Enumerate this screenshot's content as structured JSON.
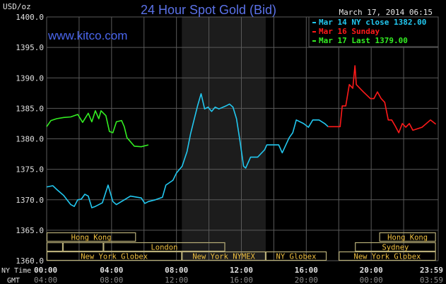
{
  "chart_data": {
    "type": "line",
    "title": "24 Hour Spot Gold (Bid)",
    "watermark": "www.kitco.com",
    "timestamp": "March 17, 2014 06:15",
    "ylabel": "USD/oz",
    "ylim": [
      1360,
      1400
    ],
    "yticks": [
      "1360.0",
      "1365.0",
      "1370.0",
      "1375.0",
      "1380.0",
      "1385.0",
      "1390.0",
      "1395.0",
      "1400.0"
    ],
    "x_row_labels": {
      "ny": "NY Time",
      "gmt": "GMT"
    },
    "xticks_ny": [
      "00:00",
      "04:00",
      "08:00",
      "12:00",
      "16:00",
      "20:00",
      "23:59"
    ],
    "xticks_gmt": [
      "04:00",
      "08:00",
      "12:00",
      "16:00",
      "20:00",
      "00:00",
      "03:59"
    ],
    "grid": true,
    "shaded_period": [
      "08:20",
      "13:30"
    ],
    "legend_position": "top-right",
    "series": [
      {
        "name": "Mar 14 NY close 1382.00",
        "color": "#22c8f0",
        "points": [
          [
            "00:00",
            1372.1
          ],
          [
            "00:23",
            1372.3
          ],
          [
            "00:37",
            1371.7
          ],
          [
            "01:03",
            1370.7
          ],
          [
            "01:29",
            1369.2
          ],
          [
            "01:42",
            1368.9
          ],
          [
            "01:55",
            1370.0
          ],
          [
            "02:08",
            1370.1
          ],
          [
            "02:21",
            1370.9
          ],
          [
            "02:34",
            1370.6
          ],
          [
            "02:47",
            1368.7
          ],
          [
            "03:00",
            1368.9
          ],
          [
            "03:26",
            1369.5
          ],
          [
            "03:47",
            1372.4
          ],
          [
            "04:05",
            1369.7
          ],
          [
            "04:18",
            1369.2
          ],
          [
            "04:44",
            1369.9
          ],
          [
            "05:10",
            1370.6
          ],
          [
            "05:50",
            1370.3
          ],
          [
            "06:03",
            1369.4
          ],
          [
            "06:16",
            1369.7
          ],
          [
            "06:42",
            1370.0
          ],
          [
            "07:08",
            1370.4
          ],
          [
            "07:21",
            1372.4
          ],
          [
            "07:47",
            1373.2
          ],
          [
            "08:00",
            1374.4
          ],
          [
            "08:21",
            1375.5
          ],
          [
            "08:39",
            1377.9
          ],
          [
            "08:52",
            1380.8
          ],
          [
            "09:05",
            1383.1
          ],
          [
            "09:18",
            1385.4
          ],
          [
            "09:31",
            1387.4
          ],
          [
            "09:44",
            1384.9
          ],
          [
            "09:57",
            1385.2
          ],
          [
            "10:10",
            1384.5
          ],
          [
            "10:23",
            1385.2
          ],
          [
            "10:37",
            1384.9
          ],
          [
            "11:03",
            1385.4
          ],
          [
            "11:16",
            1385.7
          ],
          [
            "11:29",
            1385.2
          ],
          [
            "11:42",
            1383.3
          ],
          [
            "11:55",
            1379.6
          ],
          [
            "12:08",
            1375.5
          ],
          [
            "12:16",
            1375.2
          ],
          [
            "12:34",
            1377.0
          ],
          [
            "13:00",
            1377.0
          ],
          [
            "13:26",
            1378.2
          ],
          [
            "13:34",
            1379.0
          ],
          [
            "13:52",
            1379.0
          ],
          [
            "14:18",
            1379.0
          ],
          [
            "14:31",
            1377.7
          ],
          [
            "14:57",
            1380.2
          ],
          [
            "15:10",
            1381.0
          ],
          [
            "15:23",
            1383.1
          ],
          [
            "15:50",
            1382.5
          ],
          [
            "16:08",
            1381.9
          ],
          [
            "16:24",
            1383.1
          ],
          [
            "16:47",
            1383.1
          ],
          [
            "17:08",
            1382.5
          ],
          [
            "17:21",
            1382.0
          ]
        ]
      },
      {
        "name": "Mar 16 Sunday",
        "color": "#ff1a1a",
        "points": [
          [
            "17:21",
            1382.0
          ],
          [
            "18:05",
            1382.0
          ],
          [
            "18:13",
            1385.4
          ],
          [
            "18:26",
            1385.4
          ],
          [
            "18:39",
            1388.9
          ],
          [
            "18:52",
            1388.3
          ],
          [
            "19:00",
            1392.0
          ],
          [
            "19:05",
            1388.9
          ],
          [
            "19:18",
            1388.3
          ],
          [
            "19:31",
            1387.7
          ],
          [
            "19:57",
            1386.6
          ],
          [
            "20:10",
            1386.6
          ],
          [
            "20:23",
            1387.7
          ],
          [
            "20:37",
            1386.6
          ],
          [
            "20:50",
            1386.0
          ],
          [
            "21:03",
            1383.1
          ],
          [
            "21:16",
            1383.1
          ],
          [
            "21:29",
            1382.1
          ],
          [
            "21:42",
            1381.0
          ],
          [
            "21:55",
            1382.5
          ],
          [
            "22:08",
            1381.9
          ],
          [
            "22:21",
            1382.5
          ],
          [
            "22:34",
            1381.4
          ],
          [
            "22:47",
            1381.6
          ],
          [
            "23:08",
            1381.9
          ],
          [
            "23:39",
            1383.1
          ],
          [
            "23:59",
            1382.4
          ]
        ]
      },
      {
        "name": "Mar 17 Last 1379.00",
        "color": "#33ee22",
        "points": [
          [
            "00:00",
            1382.0
          ],
          [
            "00:16",
            1383.0
          ],
          [
            "00:37",
            1383.3
          ],
          [
            "01:03",
            1383.5
          ],
          [
            "01:29",
            1383.6
          ],
          [
            "01:55",
            1384.0
          ],
          [
            "02:13",
            1382.7
          ],
          [
            "02:34",
            1384.2
          ],
          [
            "02:47",
            1382.8
          ],
          [
            "03:00",
            1384.6
          ],
          [
            "03:13",
            1383.3
          ],
          [
            "03:21",
            1384.6
          ],
          [
            "03:39",
            1383.8
          ],
          [
            "03:52",
            1381.2
          ],
          [
            "04:05",
            1381.0
          ],
          [
            "04:18",
            1382.8
          ],
          [
            "04:37",
            1383.0
          ],
          [
            "04:47",
            1382.0
          ],
          [
            "04:57",
            1380.2
          ],
          [
            "05:24",
            1378.8
          ],
          [
            "05:50",
            1378.7
          ],
          [
            "06:16",
            1379.0
          ]
        ]
      }
    ],
    "sessions": [
      {
        "label": "Hong Kong",
        "start": "00:00",
        "end": "05:30",
        "row": 1
      },
      {
        "label": "",
        "start": "00:00",
        "end": "01:00",
        "row": 2
      },
      {
        "label": "",
        "start": "01:00",
        "end": "03:30",
        "row": 2
      },
      {
        "label": "London",
        "start": "03:30",
        "end": "11:00",
        "row": 2
      },
      {
        "label": "New York Globex",
        "start": "00:00",
        "end": "08:20",
        "row": 3
      },
      {
        "label": "New York NYMEX",
        "start": "08:20",
        "end": "13:30",
        "row": 3
      },
      {
        "label": "NY Globex",
        "start": "13:30",
        "end": "17:15",
        "row": 3
      },
      {
        "label": "New York Globex",
        "start": "18:00",
        "end": "23:59",
        "row": 3
      },
      {
        "label": "Sydney",
        "start": "19:00",
        "end": "23:59",
        "row": 2
      },
      {
        "label": "Hong Kong",
        "start": "20:30",
        "end": "23:59",
        "row": 1
      }
    ],
    "colors": {
      "title": "#5b72e8",
      "watermark": "#4a66ee",
      "grid": "#5a5a5a",
      "shade": "#1c1c1c",
      "session_border": "#b8ae78",
      "session_text": "#f0c040",
      "tick_ny": "#e0e0e0",
      "tick_gmt": "#8a8a8a"
    }
  }
}
